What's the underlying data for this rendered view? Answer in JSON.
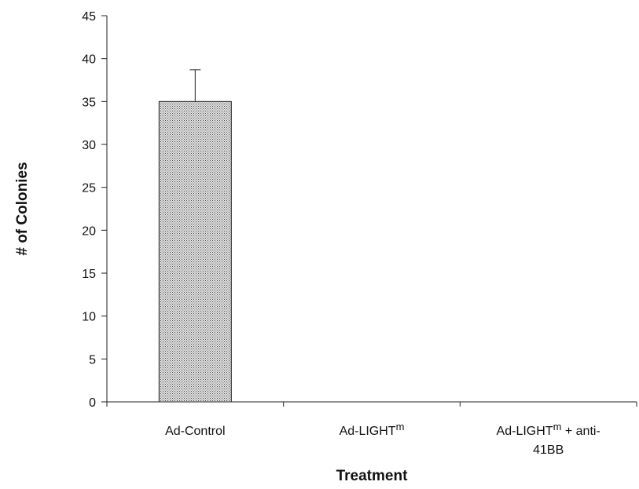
{
  "chart_data": {
    "type": "bar",
    "categories": [
      "Ad-Control",
      "Ad-LIGHTm",
      "Ad-LIGHTm + anti-41BB"
    ],
    "category_label_parts": [
      [
        {
          "text": "Ad-Control"
        }
      ],
      [
        {
          "text": "Ad-LIGHT"
        },
        {
          "text": "m",
          "sup": true
        }
      ],
      [
        {
          "text": "Ad-LIGHT"
        },
        {
          "text": "m",
          "sup": true
        },
        {
          "text": " + anti-"
        },
        {
          "text": "41BB",
          "newline": true
        }
      ]
    ],
    "values": [
      35,
      0,
      0
    ],
    "error": [
      3.7,
      0,
      0
    ],
    "xlabel": "Treatment",
    "ylabel": "# of Colonies",
    "ylim": [
      0,
      45
    ],
    "yticks": [
      0,
      5,
      10,
      15,
      20,
      25,
      30,
      35,
      40,
      45
    ],
    "grid": false,
    "legend": "none",
    "bar_pattern": "crosshatch",
    "colors": {
      "bar_fill": "#aaaaaa",
      "bar_pattern_dark": "#444444",
      "bar_pattern_light": "#e6e6e6",
      "bar_stroke": "#222222",
      "axis": "#222222",
      "text": "#111111"
    }
  }
}
